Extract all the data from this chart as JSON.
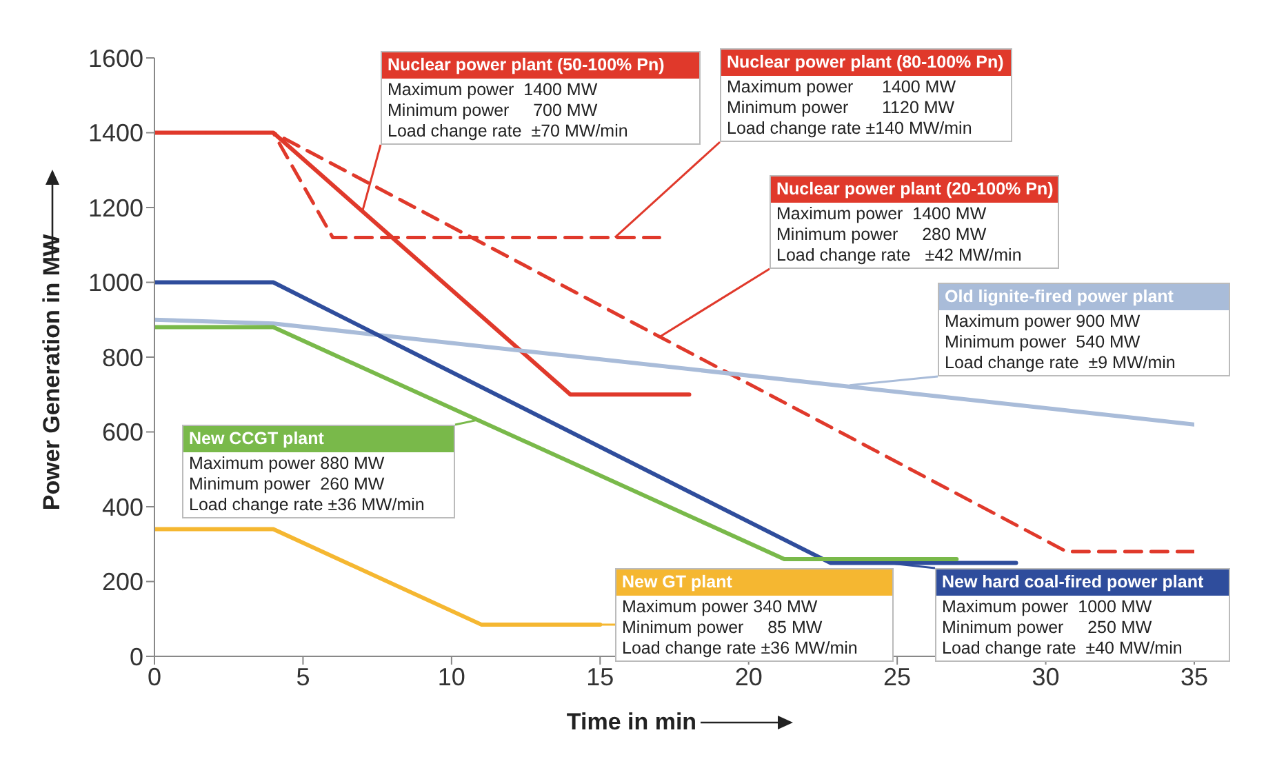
{
  "chart_data": {
    "type": "line",
    "xlabel": "Time in min",
    "ylabel": "Power Generation in MW",
    "xlim": [
      0,
      35
    ],
    "xticks": [
      0,
      5,
      10,
      15,
      20,
      25,
      30,
      35
    ],
    "ylim": [
      0,
      1600
    ],
    "yticks": [
      0,
      200,
      400,
      600,
      800,
      1000,
      1200,
      1400,
      1600
    ],
    "grid": false,
    "legend": false,
    "marker": "none",
    "series": [
      {
        "name": "Nuclear power plant (50-100% Pn)",
        "color": "#e0392b",
        "line_style": "solid",
        "x": [
          0,
          4,
          14,
          18
        ],
        "values": [
          1400,
          1400,
          700,
          700
        ]
      },
      {
        "name": "Nuclear power plant (80-100% Pn)",
        "color": "#e0392b",
        "line_style": "dashed",
        "x": [
          0,
          4,
          6,
          17
        ],
        "values": [
          1400,
          1400,
          1120,
          1120
        ]
      },
      {
        "name": "Nuclear power plant (20-100% Pn)",
        "color": "#e0392b",
        "line_style": "dashed",
        "x": [
          0,
          4,
          30.7,
          35
        ],
        "values": [
          1400,
          1400,
          280,
          280
        ]
      },
      {
        "name": "Old lignite-fired power plant",
        "color": "#a9bcd9",
        "line_style": "solid",
        "x": [
          0,
          4,
          35
        ],
        "values": [
          900,
          890,
          620
        ]
      },
      {
        "name": "New hard coal-fired power plant",
        "color": "#2f4d9c",
        "line_style": "solid",
        "x": [
          0,
          4,
          22.75,
          29
        ],
        "values": [
          1000,
          1000,
          250,
          250
        ]
      },
      {
        "name": "New CCGT plant",
        "color": "#79b94a",
        "line_style": "solid",
        "x": [
          0,
          4,
          21.2,
          27
        ],
        "values": [
          880,
          880,
          260,
          260
        ]
      },
      {
        "name": "New GT plant",
        "color": "#f5b731",
        "line_style": "solid",
        "x": [
          0,
          4,
          11,
          15
        ],
        "values": [
          340,
          340,
          85,
          85
        ]
      }
    ],
    "annotations": [
      {
        "text": "Maximum power  1400 MW\nMinimum power     700 MW\nLoad change rate  ±70 MW/min",
        "x": 7,
        "y": 1190
      },
      {
        "text": "Maximum power      1400 MW\nMinimum power       1120 MW\nLoad change rate ±140 MW/min",
        "x": 15.5,
        "y": 1120
      },
      {
        "text": "Maximum power  1400 MW\nMinimum power     280 MW\nLoad change rate   ±42 MW/min",
        "x": 17,
        "y": 854
      },
      {
        "text": "Maximum power 900 MW\nMinimum power  540 MW\nLoad change rate  ±9 MW/min",
        "x": 23.4,
        "y": 725
      },
      "Maximum power  1000 MW\nMinimum power     250 MW\nLoad change rate  ±40 MW/min",
      "Maximum power 880 MW\nMinimum power  260 MW\nLoad change rate ±36 MW/min",
      {
        "text": "Maximum power 340 MW\nMinimum power     85 MW\nLoad change rate ±36 MW/min",
        "x": 14,
        "y": 85
      }
    ]
  }
}
